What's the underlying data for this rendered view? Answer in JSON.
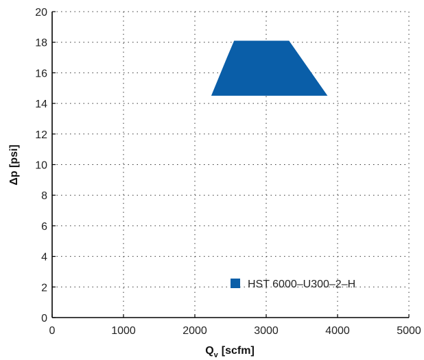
{
  "chart_data": {
    "type": "area",
    "title": "",
    "xlabel": "Q",
    "xlabel_subscript": "v",
    "xlabel_unit": "[scfm]",
    "ylabel": "Δp [psi]",
    "xlim": [
      0,
      5000
    ],
    "ylim": [
      0,
      20
    ],
    "xticks": [
      0,
      1000,
      2000,
      3000,
      4000,
      5000
    ],
    "yticks": [
      0,
      2,
      4,
      6,
      8,
      10,
      12,
      14,
      16,
      18,
      20
    ],
    "xtick_labels": [
      "0",
      "1000",
      "2000",
      "3000",
      "4000",
      "5000"
    ],
    "ytick_labels": [
      "0",
      "2",
      "4",
      "6",
      "8",
      "10",
      "12",
      "14",
      "16",
      "18",
      "20"
    ],
    "grid": true,
    "legend_position": "lower-right",
    "series": [
      {
        "name": "HST 6000–U300–2–H",
        "color": "#0a5ea8",
        "polygon": [
          {
            "x": 2230,
            "y": 14.5
          },
          {
            "x": 2450,
            "y": 17.0
          },
          {
            "x": 2550,
            "y": 18.1
          },
          {
            "x": 3320,
            "y": 18.1
          },
          {
            "x": 3860,
            "y": 14.5
          }
        ]
      }
    ]
  }
}
